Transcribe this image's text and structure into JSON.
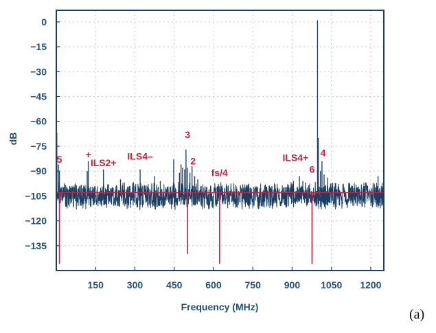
{
  "chart_data": {
    "type": "line",
    "title": "",
    "xlabel": "Frequency (MHz)",
    "ylabel": "dB",
    "xlim": [
      0,
      1250
    ],
    "ylim": [
      -150,
      7
    ],
    "x_ticks": [
      150,
      300,
      450,
      600,
      750,
      900,
      1050,
      1200
    ],
    "y_ticks": [
      0,
      -15,
      -30,
      -45,
      -60,
      -75,
      -90,
      -105,
      -120,
      -135
    ],
    "grid": true,
    "panel_label": "(a)",
    "colors": {
      "axis_text": "#1f4e79",
      "spectrum": "#1d3f63",
      "annotation": "#cc1f3d",
      "grid": "#c9c9c9",
      "frame": "#1d3f63"
    },
    "series": [
      {
        "noise_floor_db": -105,
        "noise_band_db": [
          -112,
          -98
        ],
        "spikes": [
          {
            "x": 2,
            "y": -67
          },
          {
            "x": 8,
            "y": -86
          },
          {
            "x": 12,
            "y": -90
          },
          {
            "x": 118,
            "y": -90
          },
          {
            "x": 122,
            "y": -84
          },
          {
            "x": 180,
            "y": -89
          },
          {
            "x": 215,
            "y": -100
          },
          {
            "x": 245,
            "y": -95
          },
          {
            "x": 320,
            "y": -89
          },
          {
            "x": 375,
            "y": -93
          },
          {
            "x": 397,
            "y": -96
          },
          {
            "x": 448,
            "y": -83
          },
          {
            "x": 470,
            "y": -91
          },
          {
            "x": 476,
            "y": -86
          },
          {
            "x": 482,
            "y": -88
          },
          {
            "x": 490,
            "y": -89
          },
          {
            "x": 495,
            "y": -77
          },
          {
            "x": 500,
            "y": -88
          },
          {
            "x": 510,
            "y": -91
          },
          {
            "x": 518,
            "y": -87
          },
          {
            "x": 528,
            "y": -93
          },
          {
            "x": 540,
            "y": -95
          },
          {
            "x": 583,
            "y": -101
          },
          {
            "x": 620,
            "y": -100
          },
          {
            "x": 905,
            "y": -96
          },
          {
            "x": 928,
            "y": -93
          },
          {
            "x": 941,
            "y": -96
          },
          {
            "x": 951,
            "y": -97
          },
          {
            "x": 997,
            "y": 1
          },
          {
            "x": 1000,
            "y": -70
          },
          {
            "x": 1008,
            "y": -90
          },
          {
            "x": 1014,
            "y": -84
          },
          {
            "x": 1022,
            "y": -92
          },
          {
            "x": 1036,
            "y": -94
          },
          {
            "x": 1228,
            "y": -93
          }
        ]
      }
    ],
    "annotations": [
      {
        "label": "5",
        "x": 12,
        "y": -85,
        "line_to_db": -146
      },
      {
        "label": "+",
        "x": 122,
        "y": -82,
        "line_to_db": null
      },
      {
        "label": "ILS2+",
        "x": 180,
        "y": -87,
        "line_to_db": null
      },
      {
        "label": "ILS4–",
        "x": 320,
        "y": -83,
        "line_to_db": null
      },
      {
        "label": "3",
        "x": 501,
        "y": -70,
        "line_to_db": -140
      },
      {
        "label": "2",
        "x": 522,
        "y": -86,
        "line_to_db": null
      },
      {
        "label": "fs/4",
        "x": 623,
        "y": -93,
        "line_to_db": -146
      },
      {
        "label": "ILS4+",
        "x": 913,
        "y": -84,
        "line_to_db": null
      },
      {
        "label": "4",
        "x": 1018,
        "y": -81,
        "line_to_db": null
      },
      {
        "label": "6",
        "x": 976,
        "y": -91,
        "line_to_db": -146
      }
    ],
    "reference_line_db": -103
  }
}
